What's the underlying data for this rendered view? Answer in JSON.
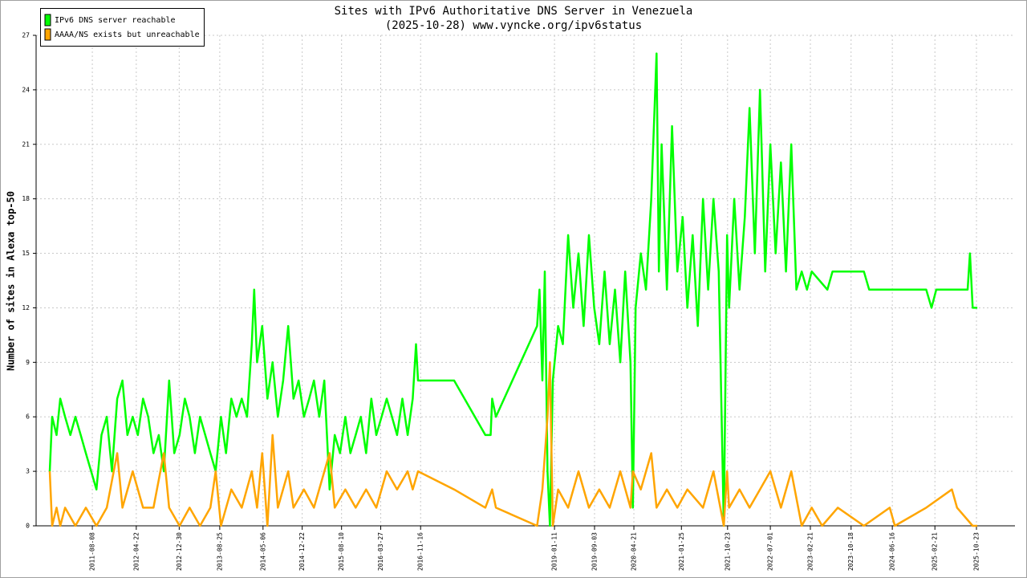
{
  "chart_data": {
    "type": "line",
    "title": "Sites with IPv6 Authoritative DNS Server in Venezuela",
    "subtitle": "(2025-10-28) www.vyncke.org/ipv6status",
    "y_label": "Number of sites in Alexa top-50",
    "xlim": [
      "2010-09-12",
      "2026-06-06"
    ],
    "xticks": [
      "2011-08-08",
      "2012-04-22",
      "2012-12-30",
      "2013-08-25",
      "2014-05-06",
      "2014-12-22",
      "2015-08-10",
      "2016-03-27",
      "2016-11-16",
      "2019-01-11",
      "2019-09-03",
      "2020-04-21",
      "2021-01-25",
      "2021-10-23",
      "2022-07-01",
      "2023-02-21",
      "2023-10-18",
      "2024-06-16",
      "2025-02-21",
      "2025-10-23"
    ],
    "ylim": [
      0,
      27
    ],
    "yticks": [
      0,
      3,
      6,
      9,
      12,
      15,
      18,
      21,
      24,
      27
    ],
    "grid": true,
    "legend": "upper left",
    "series": [
      {
        "name": "IPv6 DNS server reachable",
        "color": "#00ff00",
        "x": [
          "2010-12-01",
          "2010-12-15",
          "2011-01-10",
          "2011-02-01",
          "2011-03-01",
          "2011-04-01",
          "2011-05-01",
          "2011-06-01",
          "2011-07-01",
          "2011-08-01",
          "2011-09-01",
          "2011-10-01",
          "2011-11-01",
          "2011-12-01",
          "2012-01-01",
          "2012-02-01",
          "2012-03-01",
          "2012-04-01",
          "2012-05-01",
          "2012-06-01",
          "2012-07-01",
          "2012-08-01",
          "2012-09-01",
          "2012-10-01",
          "2012-11-01",
          "2012-12-01",
          "2013-01-01",
          "2013-02-01",
          "2013-03-01",
          "2013-04-01",
          "2013-05-01",
          "2013-06-01",
          "2013-07-01",
          "2013-08-01",
          "2013-09-01",
          "2013-10-01",
          "2013-11-01",
          "2013-12-01",
          "2014-01-01",
          "2014-02-01",
          "2014-03-01",
          "2014-03-15",
          "2014-04-01",
          "2014-05-01",
          "2014-06-01",
          "2014-07-01",
          "2014-08-01",
          "2014-09-01",
          "2014-10-01",
          "2014-11-01",
          "2014-12-01",
          "2015-01-01",
          "2015-02-01",
          "2015-03-01",
          "2015-04-01",
          "2015-05-01",
          "2015-06-01",
          "2015-07-01",
          "2015-08-01",
          "2015-09-01",
          "2015-10-01",
          "2015-11-01",
          "2015-12-01",
          "2016-01-01",
          "2016-02-01",
          "2016-03-01",
          "2016-04-01",
          "2016-05-01",
          "2016-06-01",
          "2016-07-01",
          "2016-08-01",
          "2016-09-01",
          "2016-10-01",
          "2016-10-20",
          "2016-11-01",
          "2017-06-01",
          "2017-12-01",
          "2018-01-01",
          "2018-01-10",
          "2018-02-01",
          "2018-10-01",
          "2018-10-15",
          "2018-11-01",
          "2018-11-15",
          "2018-12-01",
          "2018-12-15",
          "2019-01-01",
          "2019-02-01",
          "2019-03-01",
          "2019-04-01",
          "2019-05-01",
          "2019-06-01",
          "2019-07-01",
          "2019-08-01",
          "2019-09-01",
          "2019-10-01",
          "2019-11-01",
          "2019-12-01",
          "2020-01-01",
          "2020-02-01",
          "2020-03-01",
          "2020-04-01",
          "2020-04-15",
          "2020-05-01",
          "2020-06-01",
          "2020-07-01",
          "2020-08-01",
          "2020-09-01",
          "2020-09-15",
          "2020-10-01",
          "2020-11-01",
          "2020-12-01",
          "2021-01-01",
          "2021-02-01",
          "2021-03-01",
          "2021-04-01",
          "2021-05-01",
          "2021-06-01",
          "2021-07-01",
          "2021-08-01",
          "2021-09-01",
          "2021-10-01",
          "2021-10-20",
          "2021-11-01",
          "2021-12-01",
          "2022-01-01",
          "2022-02-01",
          "2022-03-01",
          "2022-04-01",
          "2022-05-01",
          "2022-06-01",
          "2022-07-01",
          "2022-08-01",
          "2022-09-01",
          "2022-10-01",
          "2022-11-01",
          "2022-12-01",
          "2023-01-01",
          "2023-02-01",
          "2023-03-01",
          "2023-06-01",
          "2023-07-01",
          "2024-01-01",
          "2024-02-01",
          "2025-01-01",
          "2025-02-01",
          "2025-03-01",
          "2025-09-01",
          "2025-09-15",
          "2025-10-01",
          "2025-10-28"
        ],
        "values": [
          3,
          6,
          5,
          7,
          6,
          5,
          6,
          5,
          4,
          3,
          2,
          5,
          6,
          3,
          7,
          8,
          5,
          6,
          5,
          7,
          6,
          4,
          5,
          3,
          8,
          4,
          5,
          7,
          6,
          4,
          6,
          5,
          4,
          3,
          6,
          4,
          7,
          6,
          7,
          6,
          10,
          13,
          9,
          11,
          7,
          9,
          6,
          8,
          11,
          7,
          8,
          6,
          7,
          8,
          6,
          8,
          2,
          5,
          4,
          6,
          4,
          5,
          6,
          4,
          7,
          5,
          6,
          7,
          6,
          5,
          7,
          5,
          7,
          10,
          8,
          8,
          5,
          5,
          7,
          6,
          11,
          13,
          8,
          14,
          3,
          0,
          8,
          11,
          10,
          16,
          12,
          15,
          11,
          16,
          12,
          10,
          14,
          10,
          13,
          9,
          14,
          9,
          1,
          12,
          15,
          13,
          18,
          26,
          14,
          21,
          13,
          22,
          14,
          17,
          12,
          16,
          11,
          18,
          13,
          18,
          14,
          0,
          16,
          12,
          18,
          13,
          17,
          23,
          15,
          24,
          14,
          21,
          15,
          20,
          14,
          21,
          13,
          14,
          13,
          14,
          13,
          14,
          14,
          13,
          13,
          12,
          13,
          13,
          15,
          12,
          12
        ]
      },
      {
        "name": "AAAA/NS exists but unreachable",
        "color": "#ffa500",
        "x": [
          "2010-12-01",
          "2010-12-15",
          "2011-01-10",
          "2011-02-01",
          "2011-03-01",
          "2011-05-01",
          "2011-07-01",
          "2011-09-01",
          "2011-11-01",
          "2012-01-01",
          "2012-02-01",
          "2012-04-01",
          "2012-06-01",
          "2012-08-01",
          "2012-10-01",
          "2012-11-01",
          "2013-01-01",
          "2013-03-01",
          "2013-05-01",
          "2013-07-01",
          "2013-08-01",
          "2013-09-01",
          "2013-11-01",
          "2014-01-01",
          "2014-03-01",
          "2014-04-01",
          "2014-05-01",
          "2014-06-01",
          "2014-07-01",
          "2014-08-01",
          "2014-10-01",
          "2014-11-01",
          "2015-01-01",
          "2015-03-01",
          "2015-06-01",
          "2015-07-01",
          "2015-09-01",
          "2015-11-01",
          "2016-01-01",
          "2016-03-01",
          "2016-05-01",
          "2016-07-01",
          "2016-09-01",
          "2016-10-01",
          "2016-11-01",
          "2017-06-01",
          "2017-12-01",
          "2018-01-10",
          "2018-02-01",
          "2018-10-01",
          "2018-11-01",
          "2018-12-01",
          "2018-12-15",
          "2019-01-01",
          "2019-02-01",
          "2019-04-01",
          "2019-06-01",
          "2019-08-01",
          "2019-10-01",
          "2019-12-01",
          "2020-02-01",
          "2020-04-01",
          "2020-04-15",
          "2020-06-01",
          "2020-08-01",
          "2020-09-01",
          "2020-11-01",
          "2021-01-01",
          "2021-03-01",
          "2021-06-01",
          "2021-08-01",
          "2021-10-01",
          "2021-10-20",
          "2021-11-01",
          "2022-01-01",
          "2022-03-01",
          "2022-05-01",
          "2022-07-01",
          "2022-09-01",
          "2022-11-01",
          "2023-01-01",
          "2023-03-01",
          "2023-05-01",
          "2023-08-01",
          "2024-01-01",
          "2024-06-01",
          "2024-07-01",
          "2025-01-01",
          "2025-06-01",
          "2025-07-01",
          "2025-10-01",
          "2025-10-28"
        ],
        "values": [
          3,
          0,
          1,
          0,
          1,
          0,
          1,
          0,
          1,
          4,
          1,
          3,
          1,
          1,
          4,
          1,
          0,
          1,
          0,
          1,
          3,
          0,
          2,
          1,
          3,
          1,
          4,
          0,
          5,
          1,
          3,
          1,
          2,
          1,
          4,
          1,
          2,
          1,
          2,
          1,
          3,
          2,
          3,
          2,
          3,
          2,
          1,
          2,
          1,
          0,
          2,
          6,
          9,
          0,
          2,
          1,
          3,
          1,
          2,
          1,
          3,
          1,
          3,
          2,
          4,
          1,
          2,
          1,
          2,
          1,
          3,
          0,
          3,
          1,
          2,
          1,
          2,
          3,
          1,
          3,
          0,
          1,
          0,
          1,
          0,
          1,
          0,
          1,
          2,
          1,
          0,
          0
        ]
      }
    ]
  }
}
